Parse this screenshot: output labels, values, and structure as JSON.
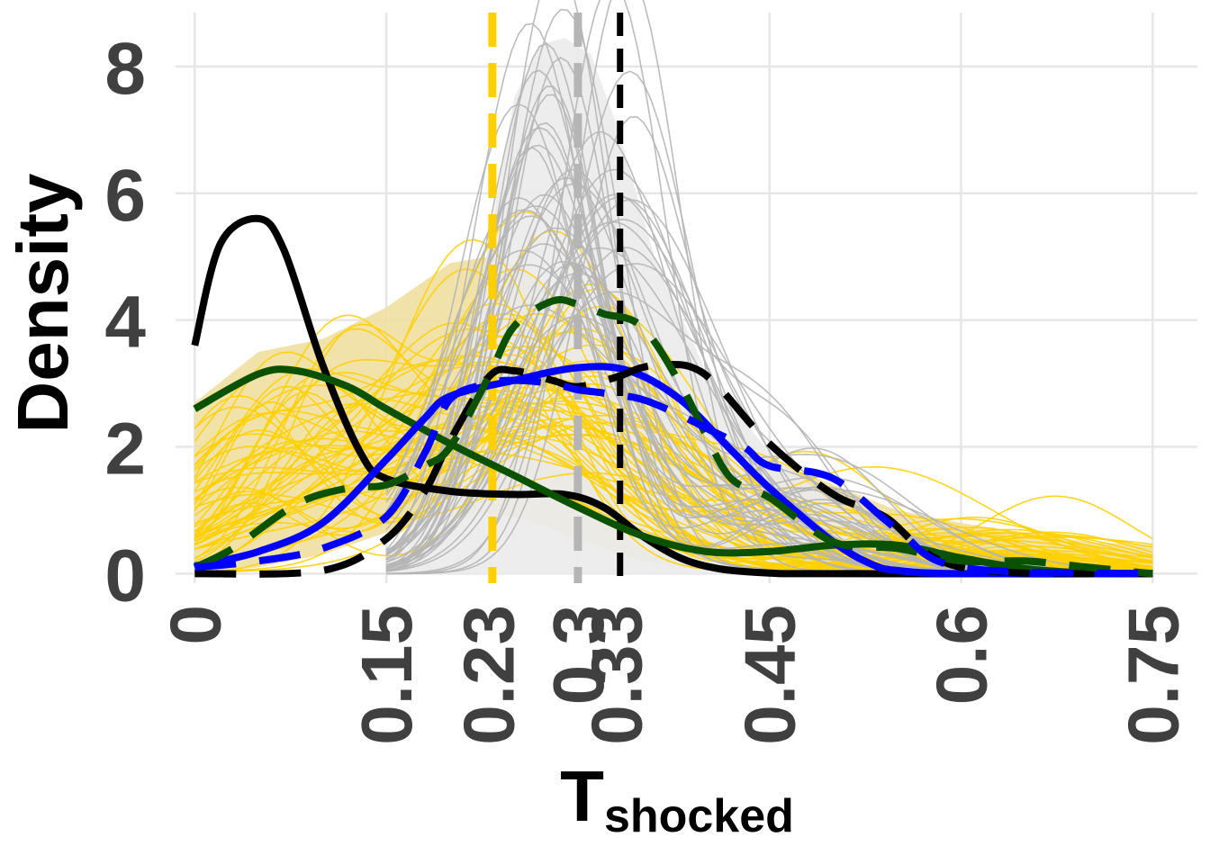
{
  "chart_data": {
    "type": "line",
    "xlabel": "T",
    "xlabel_subscript": "shocked",
    "ylabel": "Density",
    "xlim": [
      -0.015,
      0.785
    ],
    "ylim": [
      -0.15,
      8.85
    ],
    "x_ticks": [
      0,
      0.15,
      0.23,
      0.3,
      0.33,
      0.45,
      0.6,
      0.75
    ],
    "x_tick_labels": [
      "0",
      "0.15",
      "0.23",
      "0.3",
      "0.33",
      "0.45",
      "0.6",
      "0.75"
    ],
    "x_grid": [
      0,
      0.15,
      0.3,
      0.45,
      0.6,
      0.75
    ],
    "y_ticks": [
      0,
      2,
      4,
      6,
      8
    ],
    "y_tick_labels": [
      "0",
      "2",
      "4",
      "6",
      "8"
    ],
    "grid": true,
    "legend": "none",
    "colors": {
      "gold": "#FFD000",
      "gray": "#B5B5B5",
      "black": "#000000",
      "blue": "#0000FF",
      "green": "#0A5200",
      "gold_band": "#EEDFA0",
      "gray_band": "#EBEBEB"
    },
    "bands": [
      {
        "color": "gold_band",
        "x": [
          0,
          0.05,
          0.1,
          0.15,
          0.2,
          0.23,
          0.26,
          0.3,
          0.35,
          0.4,
          0.45,
          0.5,
          0.55,
          0.6,
          0.65,
          0.7,
          0.75
        ],
        "upper": [
          2.7,
          3.5,
          3.7,
          4.2,
          4.9,
          5.0,
          4.8,
          4.0,
          3.1,
          2.4,
          1.8,
          1.4,
          1.0,
          0.8,
          0.65,
          0.5,
          0.45
        ],
        "lower": [
          0,
          0.1,
          0.3,
          0.65,
          0.9,
          0.95,
          0.85,
          0.55,
          0.2,
          0.05,
          0,
          0,
          0,
          0,
          0,
          0,
          0
        ]
      },
      {
        "color": "gray_band",
        "x": [
          0.15,
          0.2,
          0.23,
          0.25,
          0.27,
          0.29,
          0.31,
          0.33,
          0.36,
          0.4,
          0.45,
          0.5,
          0.55,
          0.6,
          0.65,
          0.7,
          0.75
        ],
        "upper": [
          0.3,
          1.5,
          5.2,
          7.5,
          8.35,
          8.45,
          8.2,
          7.1,
          5.0,
          3.2,
          1.9,
          1.1,
          0.6,
          0.3,
          0.15,
          0.05,
          0
        ],
        "lower": [
          0,
          0,
          0,
          0,
          0,
          0,
          0,
          0,
          0,
          0,
          0,
          0,
          0,
          0,
          0,
          0,
          0
        ]
      }
    ],
    "ensembles": [
      {
        "color": "gold",
        "count": 60,
        "x_range": [
          0,
          0.75
        ],
        "components": [
          {
            "mu_range": [
              0.03,
              0.12
            ],
            "sd_range": [
              0.04,
              0.09
            ],
            "w_range": [
              0,
              0.55
            ]
          },
          {
            "mu_range": [
              0.19,
              0.32
            ],
            "sd_range": [
              0.06,
              0.12
            ],
            "w_range": [
              0.3,
              1
            ]
          },
          {
            "mu_range": [
              0.45,
              0.68
            ],
            "sd_range": [
              0.06,
              0.12
            ],
            "w_range": [
              0,
              0.22
            ]
          }
        ],
        "seed": 7
      },
      {
        "color": "gray",
        "count": 45,
        "x_range": [
          0.15,
          0.75
        ],
        "components": [
          {
            "mu_range": [
              0.25,
              0.34
            ],
            "sd_range": [
              0.04,
              0.07
            ],
            "w_range": [
              0.6,
              1
            ]
          },
          {
            "mu_range": [
              0.36,
              0.5
            ],
            "sd_range": [
              0.05,
              0.09
            ],
            "w_range": [
              0,
              0.35
            ]
          }
        ],
        "seed": 23
      }
    ],
    "series": [
      {
        "style": "solid",
        "color": "black",
        "x": [
          0,
          0.02,
          0.05,
          0.07,
          0.1,
          0.13,
          0.15,
          0.2,
          0.25,
          0.29,
          0.32,
          0.35,
          0.38,
          0.41,
          0.45,
          0.5,
          0.75
        ],
        "y": [
          3.6,
          5.2,
          5.6,
          5.1,
          3.3,
          1.9,
          1.5,
          1.3,
          1.25,
          1.25,
          1.05,
          0.6,
          0.25,
          0.08,
          0.01,
          0,
          0
        ]
      },
      {
        "style": "solid",
        "color": "green",
        "x": [
          0,
          0.05,
          0.08,
          0.12,
          0.15,
          0.2,
          0.25,
          0.3,
          0.35,
          0.4,
          0.45,
          0.5,
          0.55,
          0.6,
          0.65,
          0.7,
          0.75
        ],
        "y": [
          2.6,
          3.15,
          3.2,
          2.95,
          2.6,
          2.05,
          1.55,
          1.05,
          0.6,
          0.35,
          0.35,
          0.45,
          0.45,
          0.25,
          0.08,
          0.01,
          0
        ]
      },
      {
        "style": "solid",
        "color": "blue",
        "x": [
          0,
          0.05,
          0.1,
          0.15,
          0.18,
          0.2,
          0.25,
          0.3,
          0.34,
          0.38,
          0.42,
          0.45,
          0.5,
          0.53,
          0.55,
          0.6,
          0.75
        ],
        "y": [
          0.12,
          0.35,
          0.8,
          1.8,
          2.45,
          2.8,
          3.05,
          3.25,
          3.2,
          2.75,
          1.95,
          1.35,
          0.5,
          0.15,
          0.05,
          0,
          0
        ]
      },
      {
        "style": "dashed",
        "color": "black",
        "x": [
          0,
          0.1,
          0.15,
          0.18,
          0.2,
          0.23,
          0.25,
          0.28,
          0.3,
          0.33,
          0.35,
          0.37,
          0.39,
          0.41,
          0.45,
          0.5,
          0.54,
          0.6,
          0.75
        ],
        "y": [
          0,
          0.05,
          0.55,
          1.3,
          2.1,
          3.1,
          3.2,
          3.05,
          2.95,
          3.1,
          3.25,
          3.3,
          3.25,
          2.95,
          2.05,
          1.25,
          0.9,
          0.1,
          0
        ]
      },
      {
        "style": "dashed",
        "color": "green",
        "x": [
          0,
          0.03,
          0.08,
          0.12,
          0.15,
          0.18,
          0.2,
          0.23,
          0.25,
          0.28,
          0.3,
          0.32,
          0.35,
          0.38,
          0.4,
          0.42,
          0.45,
          0.5,
          0.55,
          0.6,
          0.65,
          0.7,
          0.75
        ],
        "y": [
          0.1,
          0.4,
          1.1,
          1.35,
          1.4,
          1.7,
          2.0,
          3.1,
          3.9,
          4.3,
          4.25,
          4.1,
          3.9,
          3.0,
          2.2,
          1.5,
          1.2,
          0.5,
          0.4,
          0.2,
          0.2,
          0.1,
          0
        ]
      },
      {
        "style": "dashed",
        "color": "blue",
        "x": [
          0,
          0.05,
          0.1,
          0.15,
          0.18,
          0.2,
          0.23,
          0.25,
          0.28,
          0.3,
          0.32,
          0.35,
          0.38,
          0.4,
          0.43,
          0.45,
          0.5,
          0.55,
          0.6,
          0.75
        ],
        "y": [
          0.1,
          0.2,
          0.4,
          0.9,
          1.9,
          2.75,
          3.0,
          3.05,
          3.0,
          2.9,
          2.85,
          2.75,
          2.5,
          2.3,
          2.0,
          1.7,
          1.5,
          0.7,
          0.1,
          0
        ]
      }
    ],
    "vlines": [
      {
        "x": 0.233,
        "color": "gold",
        "style": "long-dashed"
      },
      {
        "x": 0.3,
        "color": "gray",
        "style": "long-dashed"
      },
      {
        "x": 0.333,
        "color": "black",
        "style": "dashed"
      }
    ]
  }
}
